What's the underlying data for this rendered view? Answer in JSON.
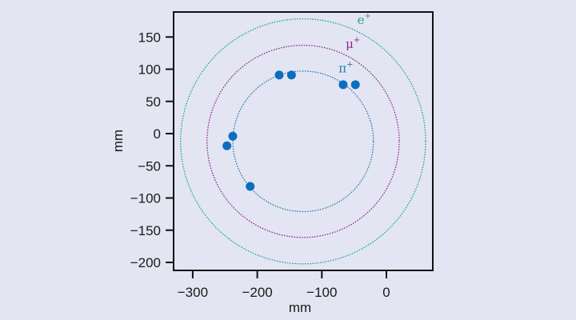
{
  "chart_data": {
    "type": "scatter",
    "title": "",
    "xlabel": "mm",
    "ylabel": "mm",
    "xlim": [
      -330,
      70
    ],
    "ylim": [
      -212,
      190
    ],
    "grid": false,
    "x_ticks": [
      -300,
      -200,
      -100,
      0
    ],
    "x_tick_labels": [
      "−300",
      "−200",
      "−100",
      "0"
    ],
    "y_ticks": [
      150,
      100,
      50,
      0,
      -50,
      -100,
      -150,
      -200
    ],
    "y_tick_labels": [
      "150",
      "100",
      "50",
      "0",
      "−50",
      "−100",
      "−150",
      "−200"
    ],
    "circles": [
      {
        "name": "e+",
        "label": "e",
        "sup": "+",
        "center": [
          -129,
          -12
        ],
        "radius": 190,
        "color": "#1aa88c",
        "label_pos": [
          -45,
          170
        ]
      },
      {
        "name": "mu+",
        "label": "μ",
        "sup": "+",
        "center": [
          -129,
          -12
        ],
        "radius": 149,
        "color": "#8b2c8c",
        "label_pos": [
          -63,
          133
        ]
      },
      {
        "name": "pi+",
        "label": "π",
        "sup": "+",
        "center": [
          -129,
          -12
        ],
        "radius": 109,
        "color": "#2a7aa8",
        "label_pos": [
          -74,
          95
        ]
      }
    ],
    "series": [
      {
        "name": "hits",
        "color": "#0d6ebf",
        "points": [
          [
            -166,
            91
          ],
          [
            -147,
            91
          ],
          [
            -67,
            76
          ],
          [
            -48,
            76
          ],
          [
            -238,
            -4
          ],
          [
            -247,
            -19
          ],
          [
            -211,
            -82
          ]
        ]
      }
    ]
  }
}
